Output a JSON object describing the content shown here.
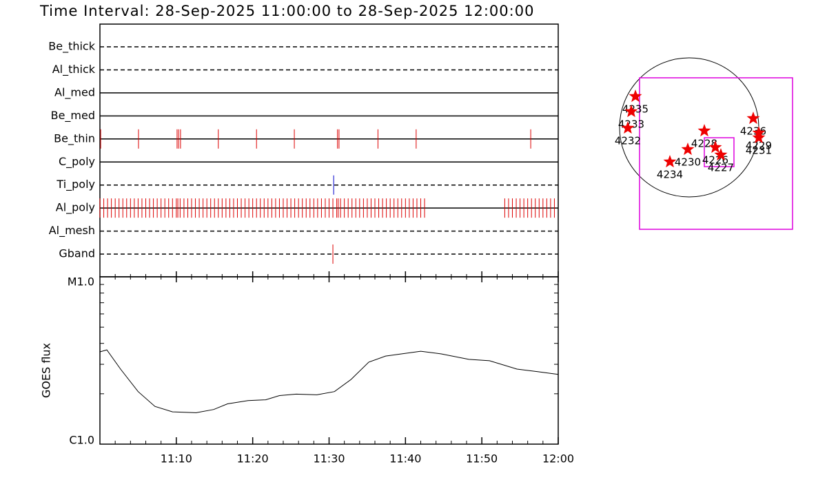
{
  "chart_data": [
    {
      "type": "timeline",
      "title": "Time Interval: 28-Sep-2025 11:00:00 to 28-Sep-2025 12:00:00",
      "categories": [
        "Be_thick",
        "Al_thick",
        "Al_med",
        "Be_med",
        "Be_thin",
        "C_poly",
        "Ti_poly",
        "Al_poly",
        "Al_mesh",
        "Gband"
      ],
      "line_styles": [
        "dashed",
        "dashed",
        "solid",
        "solid",
        "solid",
        "solid",
        "dashed",
        "solid",
        "dashed",
        "dashed"
      ],
      "colors": [
        "#dd0000",
        "#dd0000",
        "#dd0000",
        "#dd0000",
        "#dd0000",
        "#dd0000",
        "#0000cc",
        "#dd0000",
        "#dd0000",
        "#dd0000"
      ],
      "events": [
        [],
        [],
        [],
        [],
        [
          0.1,
          5.05,
          10.1,
          10.3,
          10.55,
          15.5,
          20.5,
          25.45,
          31.1,
          31.3,
          36.4,
          41.4,
          56.4
        ],
        [],
        [
          30.6
        ],
        [
          0,
          0.5,
          1,
          1.5,
          2,
          2.5,
          3,
          3.5,
          4,
          4.5,
          5,
          5.5,
          6,
          6.5,
          7,
          7.5,
          8,
          8.5,
          9,
          9.5,
          10,
          10.2,
          10.5,
          11,
          11.5,
          12,
          12.5,
          13,
          13.5,
          14,
          14.5,
          15,
          15.5,
          16,
          16.5,
          17,
          17.5,
          18,
          18.5,
          19,
          19.5,
          20,
          20.5,
          21,
          21.5,
          22,
          22.5,
          23,
          23.5,
          24,
          24.5,
          25,
          25.5,
          26,
          26.5,
          27,
          27.5,
          28,
          28.5,
          29,
          29.5,
          30,
          30.5,
          31,
          31.2,
          31.5,
          32,
          32.5,
          33,
          33.5,
          34,
          34.5,
          35,
          35.5,
          36,
          36.5,
          37,
          37.5,
          38,
          38.5,
          39,
          39.5,
          40,
          40.5,
          41,
          41.5,
          42,
          42.5,
          53,
          53.5,
          54,
          54.5,
          55,
          55.5,
          56,
          56.5,
          57,
          57.5,
          58,
          58.5,
          59,
          59.5
        ],
        [],
        [
          30.5
        ]
      ],
      "xlim": [
        0,
        60
      ]
    },
    {
      "type": "line",
      "ylabel": "GOES flux",
      "x": [
        0,
        0.9,
        2.7,
        5.0,
        7.2,
        9.5,
        12.6,
        14.9,
        16.7,
        19.4,
        21.7,
        23.5,
        25.7,
        28.4,
        30.7,
        32.9,
        35.2,
        37.4,
        42.0,
        44.7,
        48.3,
        51.0,
        54.6,
        57.3,
        60
      ],
      "values": [
        3.56e-06,
        3.66e-06,
        2.81e-06,
        2.06e-06,
        1.68e-06,
        1.56e-06,
        1.54e-06,
        1.61e-06,
        1.74e-06,
        1.82e-06,
        1.84e-06,
        1.95e-06,
        1.99e-06,
        1.97e-06,
        2.06e-06,
        2.44e-06,
        3.09e-06,
        3.36e-06,
        3.59e-06,
        3.46e-06,
        3.21e-06,
        3.15e-06,
        2.81e-06,
        2.71e-06,
        2.61e-06
      ],
      "color": "#000000",
      "xlim": [
        0,
        60
      ],
      "xticks": [
        {
          "value": 10,
          "label": "11:10"
        },
        {
          "value": 20,
          "label": "11:20"
        },
        {
          "value": 30,
          "label": "11:30"
        },
        {
          "value": 40,
          "label": "11:40"
        },
        {
          "value": 50,
          "label": "11:50"
        },
        {
          "value": 60,
          "label": "12:00"
        }
      ],
      "minor_xticks": [
        2,
        4,
        6,
        8,
        12,
        14,
        16,
        18,
        22,
        24,
        26,
        28,
        32,
        34,
        36,
        38,
        42,
        44,
        46,
        48,
        52,
        54,
        56,
        58
      ],
      "ylim": [
        1e-06,
        1e-05
      ],
      "log_y": true,
      "yticks": [
        {
          "value": 1e-06,
          "label": "C1.0"
        },
        {
          "value": 1e-05,
          "label": "M1.0"
        }
      ],
      "minor_yticks": [
        2e-06,
        3e-06,
        4e-06,
        5e-06,
        6e-06,
        7e-06,
        8e-06,
        9e-06
      ]
    },
    {
      "type": "scatter",
      "labels": [
        "4235",
        "4233",
        "4232",
        "4228",
        "4230",
        "4234",
        "4226",
        "4227",
        "4236",
        "4229",
        "4231"
      ],
      "x": [
        -733,
        -790,
        -837,
        207,
        -19,
        -263,
        357,
        432,
        874,
        949,
        949
      ],
      "y": [
        423,
        216,
        -9,
        -47,
        -301,
        -470,
        -273,
        -376,
        122,
        -75,
        -141
      ],
      "color": "#ee0000"
    }
  ]
}
